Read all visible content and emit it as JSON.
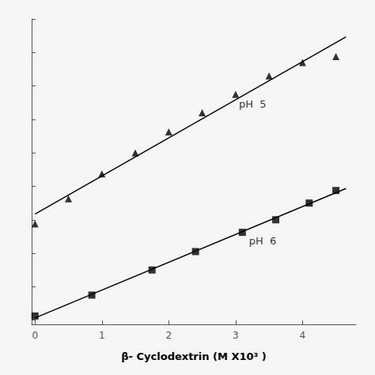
{
  "chart_data": {
    "type": "scatter",
    "xlabel": "β- Cyclodextrin (M X10³ )",
    "xlim": [
      -0.05,
      4.8
    ],
    "xticks": [
      0,
      1,
      2,
      3,
      4
    ],
    "ylim": [
      -0.005,
      0.36
    ],
    "yticks": [
      0,
      0.04,
      0.08,
      0.12,
      0.16,
      0.2,
      0.24,
      0.28,
      0.32,
      0.36
    ],
    "tick_labels": "x",
    "grid": false,
    "series": [
      {
        "name": "pH  5",
        "marker": "triangle",
        "color": "#000000",
        "x": [
          0,
          0.5,
          1.0,
          1.5,
          2.0,
          2.5,
          3.0,
          3.5,
          4.0,
          4.5
        ],
        "values": [
          0.115,
          0.145,
          0.175,
          0.2,
          0.225,
          0.248,
          0.27,
          0.292,
          0.308,
          0.315
        ],
        "fit": {
          "x": [
            0,
            4.65
          ],
          "values": [
            0.1267818182,
            0.3386527273
          ]
        }
      },
      {
        "name": "pH  6",
        "marker": "square",
        "color": "#000000",
        "x": [
          0,
          0.85,
          1.75,
          2.4,
          3.1,
          3.6,
          4.1,
          4.5
        ],
        "values": [
          0.005,
          0.03,
          0.06,
          0.082,
          0.105,
          0.12,
          0.14,
          0.155
        ],
        "fit": {
          "x": [
            0,
            4.65
          ],
          "values": [
            0.0027038779,
            0.1574066237
          ]
        }
      }
    ],
    "annotations": [
      {
        "text": "pH  5",
        "x": 3.05,
        "y": 0.258
      },
      {
        "text": "pH  6",
        "x": 3.2,
        "y": 0.095
      }
    ]
  }
}
